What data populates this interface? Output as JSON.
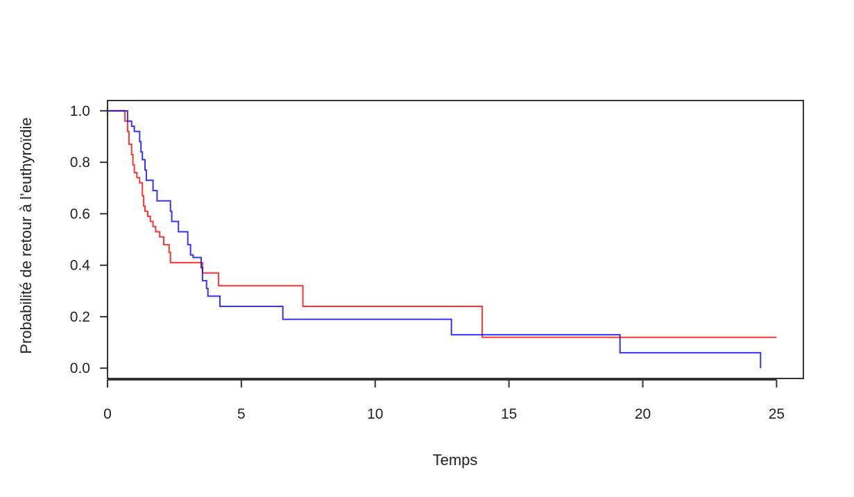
{
  "chart_data": {
    "type": "line",
    "step": true,
    "title": "",
    "xlabel": "Temps",
    "ylabel": "Probabilité de retour à l’euthyroïdie",
    "xlim": [
      0,
      26
    ],
    "ylim": [
      -0.04,
      1.04
    ],
    "xticks": [
      0,
      5,
      10,
      15,
      20,
      25
    ],
    "yticks": [
      0.0,
      0.2,
      0.4,
      0.6,
      0.8,
      1.0
    ],
    "xtick_labels": [
      "0",
      "5",
      "10",
      "15",
      "20",
      "25"
    ],
    "ytick_labels": [
      "0.0",
      "0.2",
      "0.4",
      "0.6",
      "0.8",
      "1.0"
    ],
    "grid": false,
    "legend": "none",
    "series": [
      {
        "color": "#ff0000",
        "points": [
          [
            0,
            1.0
          ],
          [
            0.65,
            0.96
          ],
          [
            0.75,
            0.92
          ],
          [
            0.8,
            0.87
          ],
          [
            0.9,
            0.83
          ],
          [
            0.95,
            0.79
          ],
          [
            1.0,
            0.76
          ],
          [
            1.1,
            0.74
          ],
          [
            1.2,
            0.72
          ],
          [
            1.3,
            0.67
          ],
          [
            1.35,
            0.63
          ],
          [
            1.4,
            0.61
          ],
          [
            1.5,
            0.59
          ],
          [
            1.6,
            0.57
          ],
          [
            1.7,
            0.55
          ],
          [
            1.8,
            0.53
          ],
          [
            1.95,
            0.51
          ],
          [
            2.1,
            0.48
          ],
          [
            2.3,
            0.45
          ],
          [
            2.35,
            0.41
          ],
          [
            3.55,
            0.37
          ],
          [
            4.15,
            0.32
          ],
          [
            7.3,
            0.24
          ],
          [
            14.0,
            0.12
          ],
          [
            25.0,
            0.12
          ]
        ]
      },
      {
        "color": "#0000ff",
        "points": [
          [
            0,
            1.0
          ],
          [
            0.75,
            0.96
          ],
          [
            0.9,
            0.94
          ],
          [
            1.0,
            0.92
          ],
          [
            1.2,
            0.88
          ],
          [
            1.25,
            0.84
          ],
          [
            1.3,
            0.81
          ],
          [
            1.4,
            0.77
          ],
          [
            1.45,
            0.73
          ],
          [
            1.7,
            0.69
          ],
          [
            1.85,
            0.65
          ],
          [
            2.35,
            0.61
          ],
          [
            2.4,
            0.57
          ],
          [
            2.65,
            0.53
          ],
          [
            3.0,
            0.48
          ],
          [
            3.1,
            0.44
          ],
          [
            3.2,
            0.43
          ],
          [
            3.5,
            0.39
          ],
          [
            3.55,
            0.34
          ],
          [
            3.7,
            0.31
          ],
          [
            3.75,
            0.28
          ],
          [
            4.2,
            0.24
          ],
          [
            6.55,
            0.19
          ],
          [
            12.85,
            0.13
          ],
          [
            19.15,
            0.06
          ],
          [
            24.4,
            0.0
          ]
        ]
      }
    ]
  }
}
